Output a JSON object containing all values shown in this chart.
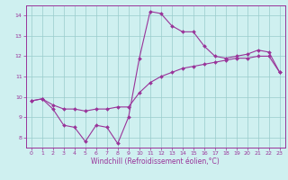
{
  "title": "",
  "xlabel": "Windchill (Refroidissement éolien,°C)",
  "ylabel": "",
  "bg_color": "#cff0f0",
  "grid_color": "#99cccc",
  "line_color": "#993399",
  "spine_color": "#993399",
  "xlim": [
    -0.5,
    23.5
  ],
  "ylim": [
    7.5,
    14.5
  ],
  "xticks": [
    0,
    1,
    2,
    3,
    4,
    5,
    6,
    7,
    8,
    9,
    10,
    11,
    12,
    13,
    14,
    15,
    16,
    17,
    18,
    19,
    20,
    21,
    22,
    23
  ],
  "yticks": [
    8,
    9,
    10,
    11,
    12,
    13,
    14
  ],
  "series1_x": [
    0,
    1,
    2,
    3,
    4,
    5,
    6,
    7,
    8,
    9,
    10,
    11,
    12,
    13,
    14,
    15,
    16,
    17,
    18,
    19,
    20,
    21,
    22,
    23
  ],
  "series1_y": [
    9.8,
    9.9,
    9.4,
    8.6,
    8.5,
    7.8,
    8.6,
    8.5,
    7.7,
    9.0,
    11.9,
    14.2,
    14.1,
    13.5,
    13.2,
    13.2,
    12.5,
    12.0,
    11.9,
    12.0,
    12.1,
    12.3,
    12.2,
    11.2
  ],
  "series2_x": [
    0,
    1,
    2,
    3,
    4,
    5,
    6,
    7,
    8,
    9,
    10,
    11,
    12,
    13,
    14,
    15,
    16,
    17,
    18,
    19,
    20,
    21,
    22,
    23
  ],
  "series2_y": [
    9.8,
    9.9,
    9.6,
    9.4,
    9.4,
    9.3,
    9.4,
    9.4,
    9.5,
    9.5,
    10.2,
    10.7,
    11.0,
    11.2,
    11.4,
    11.5,
    11.6,
    11.7,
    11.8,
    11.9,
    11.9,
    12.0,
    12.0,
    11.2
  ],
  "tick_labelsize": 4.5,
  "xlabel_fontsize": 5.5,
  "marker_size": 2.0,
  "linewidth": 0.8
}
